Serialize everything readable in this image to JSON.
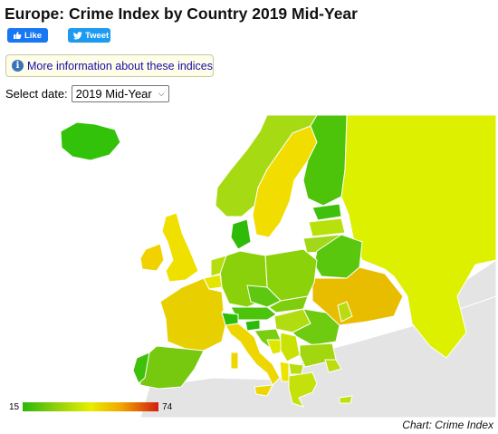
{
  "page": {
    "title": "Europe: Crime Index by Country 2019 Mid-Year"
  },
  "share": {
    "like_label": "Like",
    "tweet_label": "Tweet",
    "facebook_color": "#1877f2",
    "twitter_color": "#1d9bf0"
  },
  "info": {
    "icon": "info-icon",
    "link_label": "More information about these indices"
  },
  "date_filter": {
    "label": "Select date:",
    "selected": "2019 Mid-Year"
  },
  "map": {
    "legend_min": "15",
    "legend_max": "74",
    "scale_colors": [
      "#2bb80b",
      "#e7ee00",
      "#d21d10"
    ],
    "no_data_color": "#e4e4e4",
    "credit": "Chart: Crime Index"
  }
}
